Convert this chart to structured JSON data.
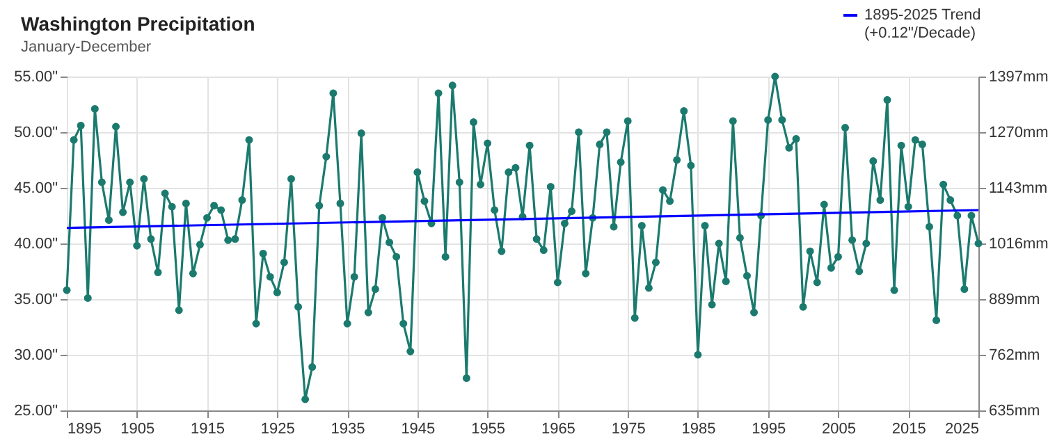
{
  "chart_data": {
    "type": "line",
    "title": "Washington Precipitation",
    "subtitle": "January-December",
    "x": [
      1895,
      1896,
      1897,
      1898,
      1899,
      1900,
      1901,
      1902,
      1903,
      1904,
      1905,
      1906,
      1907,
      1908,
      1909,
      1910,
      1911,
      1912,
      1913,
      1914,
      1915,
      1916,
      1917,
      1918,
      1919,
      1920,
      1921,
      1922,
      1923,
      1924,
      1925,
      1926,
      1927,
      1928,
      1929,
      1930,
      1931,
      1932,
      1933,
      1934,
      1935,
      1936,
      1937,
      1938,
      1939,
      1940,
      1941,
      1942,
      1943,
      1944,
      1945,
      1946,
      1947,
      1948,
      1949,
      1950,
      1951,
      1952,
      1953,
      1954,
      1955,
      1956,
      1957,
      1958,
      1959,
      1960,
      1961,
      1962,
      1963,
      1964,
      1965,
      1966,
      1967,
      1968,
      1969,
      1970,
      1971,
      1972,
      1973,
      1974,
      1975,
      1976,
      1977,
      1978,
      1979,
      1980,
      1981,
      1982,
      1983,
      1984,
      1985,
      1986,
      1987,
      1988,
      1989,
      1990,
      1991,
      1992,
      1993,
      1994,
      1995,
      1996,
      1997,
      1998,
      1999,
      2000,
      2001,
      2002,
      2003,
      2004,
      2005,
      2006,
      2007,
      2008,
      2009,
      2010,
      2011,
      2012,
      2013,
      2014,
      2015,
      2016,
      2017,
      2018,
      2019,
      2020,
      2021,
      2022,
      2023,
      2024,
      2025
    ],
    "series": [
      {
        "color": "#1b7a6e",
        "marker": "circle",
        "values": [
          35.8,
          49.3,
          50.6,
          35.1,
          52.1,
          45.5,
          42.1,
          50.5,
          42.8,
          45.5,
          39.8,
          45.8,
          40.4,
          37.4,
          44.5,
          43.3,
          34.0,
          43.6,
          37.3,
          39.9,
          42.3,
          43.4,
          43.0,
          40.3,
          40.4,
          43.9,
          49.3,
          32.8,
          39.1,
          37.0,
          35.6,
          38.3,
          45.8,
          34.3,
          26.0,
          28.9,
          43.4,
          47.8,
          53.5,
          43.6,
          32.8,
          37.0,
          49.9,
          33.8,
          35.9,
          42.3,
          40.1,
          38.8,
          32.8,
          30.3,
          46.4,
          43.8,
          41.8,
          53.5,
          38.8,
          54.2,
          45.5,
          27.9,
          50.9,
          45.3,
          49.0,
          43.0,
          39.3,
          46.4,
          46.8,
          42.4,
          48.8,
          40.4,
          39.4,
          45.1,
          36.5,
          41.8,
          42.9,
          50.0,
          37.3,
          42.3,
          48.9,
          50.0,
          41.5,
          47.3,
          51.0,
          33.3,
          41.6,
          36.0,
          38.3,
          44.8,
          43.8,
          47.5,
          51.9,
          47.0,
          30.0,
          41.6,
          34.5,
          40.0,
          36.6,
          51.0,
          40.5,
          37.1,
          33.8,
          42.5,
          51.1,
          55.0,
          51.1,
          48.6,
          49.4,
          34.3,
          39.3,
          36.5,
          43.5,
          37.8,
          38.8,
          50.4,
          40.3,
          37.5,
          40.0,
          47.4,
          43.9,
          52.9,
          35.8,
          48.8,
          43.3,
          49.3,
          48.9,
          41.5,
          33.1,
          45.3,
          43.9,
          42.5,
          35.9,
          42.5,
          40.0
        ]
      },
      {
        "name": "1895-2025 Trend (+0.12\"/Decade)",
        "color": "#0000ff",
        "marker": "none",
        "x": [
          1895,
          2025
        ],
        "values": [
          41.4,
          43.0
        ]
      }
    ],
    "xlim": [
      1895,
      2025
    ],
    "xticks": [
      1895,
      1905,
      1915,
      1925,
      1935,
      1945,
      1955,
      1965,
      1975,
      1985,
      1995,
      2005,
      2015,
      2025
    ],
    "ylim": [
      25,
      55
    ],
    "yticks": [
      {
        "value": 25,
        "label": "25.00\""
      },
      {
        "value": 30,
        "label": "30.00\""
      },
      {
        "value": 35,
        "label": "35.00\""
      },
      {
        "value": 40,
        "label": "40.00\""
      },
      {
        "value": 45,
        "label": "45.00\""
      },
      {
        "value": 50,
        "label": "50.00\""
      },
      {
        "value": 55,
        "label": "55.00\""
      }
    ],
    "y2lim": [
      635,
      1397
    ],
    "y2ticks": [
      {
        "value": 635,
        "label": "635mm"
      },
      {
        "value": 762,
        "label": "762mm"
      },
      {
        "value": 889,
        "label": "889mm"
      },
      {
        "value": 1016,
        "label": "1016mm"
      },
      {
        "value": 1143,
        "label": "1143mm"
      },
      {
        "value": 1270,
        "label": "1270mm"
      },
      {
        "value": 1397,
        "label": "1397mm"
      }
    ],
    "grid": true,
    "legend": "top right",
    "line_style": "solid"
  }
}
